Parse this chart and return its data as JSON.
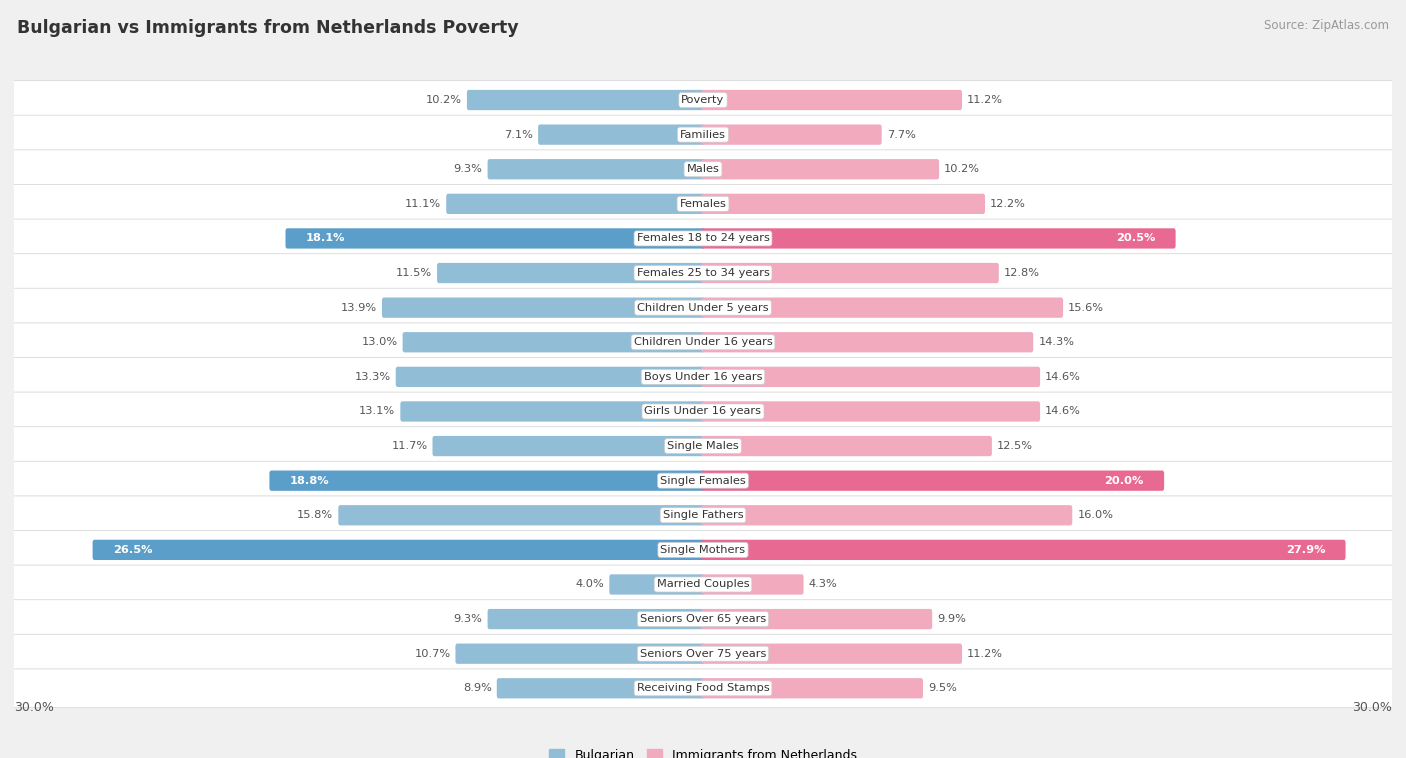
{
  "title": "Bulgarian vs Immigrants from Netherlands Poverty",
  "source": "Source: ZipAtlas.com",
  "categories": [
    "Poverty",
    "Families",
    "Males",
    "Females",
    "Females 18 to 24 years",
    "Females 25 to 34 years",
    "Children Under 5 years",
    "Children Under 16 years",
    "Boys Under 16 years",
    "Girls Under 16 years",
    "Single Males",
    "Single Females",
    "Single Fathers",
    "Single Mothers",
    "Married Couples",
    "Seniors Over 65 years",
    "Seniors Over 75 years",
    "Receiving Food Stamps"
  ],
  "bulgarian": [
    10.2,
    7.1,
    9.3,
    11.1,
    18.1,
    11.5,
    13.9,
    13.0,
    13.3,
    13.1,
    11.7,
    18.8,
    15.8,
    26.5,
    4.0,
    9.3,
    10.7,
    8.9
  ],
  "netherlands": [
    11.2,
    7.7,
    10.2,
    12.2,
    20.5,
    12.8,
    15.6,
    14.3,
    14.6,
    14.6,
    12.5,
    20.0,
    16.0,
    27.9,
    4.3,
    9.9,
    11.2,
    9.5
  ],
  "bulgarian_color": "#92bdd6",
  "netherlands_color": "#f2aabf",
  "bulgarian_highlight_color": "#5a9ec9",
  "netherlands_highlight_color": "#e86a92",
  "highlight_rows": [
    4,
    11,
    13
  ],
  "xlim": 30.0,
  "bg_color": "#f0f0f0",
  "row_bg_color": "#ffffff",
  "legend_bulgarian": "Bulgarian",
  "legend_netherlands": "Immigrants from Netherlands"
}
